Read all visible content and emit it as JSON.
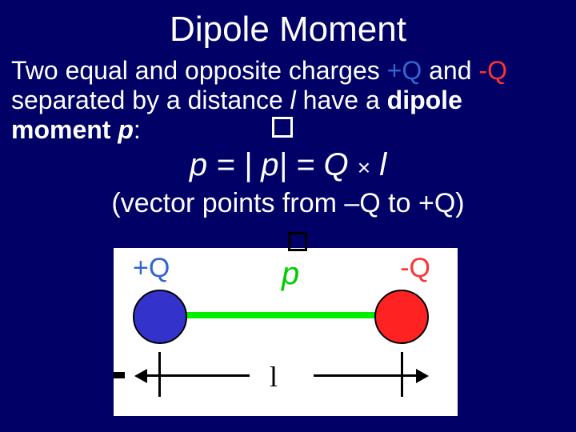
{
  "title": "Dipole Moment",
  "desc": {
    "part1": "Two equal and opposite charges ",
    "plusQ": "+Q",
    "part2": " and ",
    "minusQ": "-Q",
    "part3": " separated by a distance ",
    "l": "l",
    "part4": " have a ",
    "bold": "dipole moment ",
    "p": "p",
    "colon": ":"
  },
  "equation": {
    "text": "p = | p| =  Q ",
    "cross": "×",
    "l": " l"
  },
  "vector_note": "(vector points from –Q to +Q)",
  "diagram": {
    "plusQ": "+Q",
    "minusQ": "-Q",
    "p": "p",
    "l": "l",
    "colors": {
      "background": "#ffffff",
      "plus_charge": "#3333cc",
      "minus_charge": "#ff2222",
      "arrow": "#00ee00",
      "plusQ_text": "#3366cc",
      "minusQ_text": "#ff3333",
      "p_text": "#00cc00",
      "bracket": "#000000"
    }
  },
  "slide": {
    "background": "#000066",
    "text_color": "#ffffff",
    "title_fontsize": 44,
    "body_fontsize": 32,
    "equation_fontsize": 40
  }
}
